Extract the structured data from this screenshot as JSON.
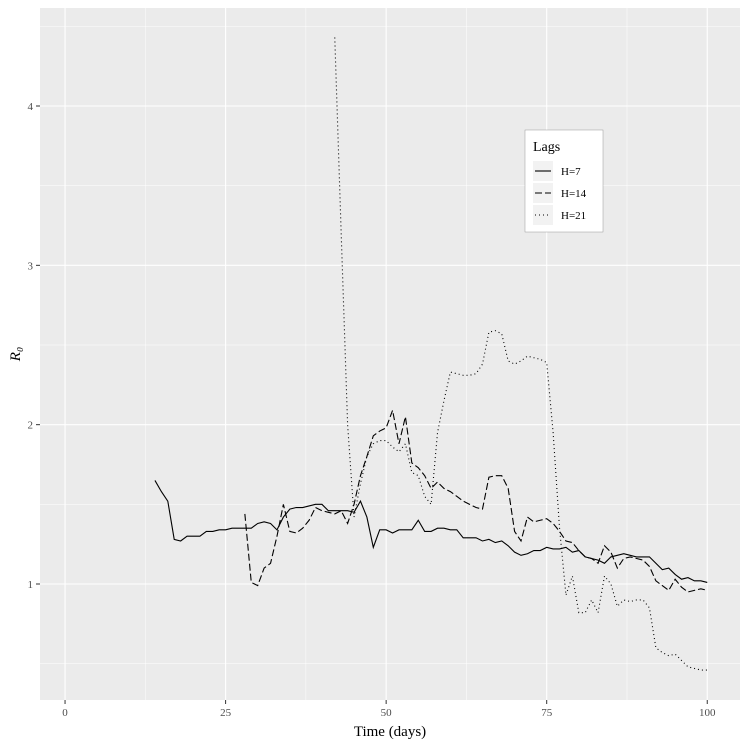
{
  "chart_data": {
    "type": "line",
    "x_label": "Time (days)",
    "y_label": "R₀",
    "x": [
      14,
      15,
      16,
      17,
      18,
      19,
      20,
      21,
      22,
      23,
      24,
      25,
      26,
      27,
      28,
      29,
      30,
      31,
      32,
      33,
      34,
      35,
      36,
      37,
      38,
      39,
      40,
      41,
      42,
      43,
      44,
      45,
      46,
      47,
      48,
      49,
      50,
      51,
      52,
      53,
      54,
      55,
      56,
      57,
      58,
      59,
      60,
      61,
      62,
      63,
      64,
      65,
      66,
      67,
      68,
      69,
      70,
      71,
      72,
      73,
      74,
      75,
      76,
      77,
      78,
      79,
      80,
      81,
      82,
      83,
      84,
      85,
      86,
      87,
      88,
      89,
      90,
      91,
      92,
      93,
      94,
      95,
      96,
      97,
      98,
      99,
      100
    ],
    "series": [
      {
        "name": "H=7",
        "color": "#000000",
        "dash": "solid",
        "values": [
          1.65,
          1.58,
          1.52,
          1.28,
          1.27,
          1.3,
          1.3,
          1.3,
          1.33,
          1.33,
          1.34,
          1.34,
          1.35,
          1.35,
          1.35,
          1.35,
          1.38,
          1.39,
          1.38,
          1.34,
          1.42,
          1.47,
          1.48,
          1.48,
          1.49,
          1.5,
          1.5,
          1.46,
          1.46,
          1.46,
          1.46,
          1.45,
          1.52,
          1.42,
          1.23,
          1.34,
          1.34,
          1.32,
          1.34,
          1.34,
          1.34,
          1.4,
          1.33,
          1.33,
          1.35,
          1.35,
          1.34,
          1.34,
          1.29,
          1.29,
          1.29,
          1.27,
          1.28,
          1.26,
          1.27,
          1.24,
          1.2,
          1.18,
          1.19,
          1.21,
          1.21,
          1.23,
          1.22,
          1.22,
          1.23,
          1.2,
          1.21,
          1.17,
          1.16,
          1.15,
          1.13,
          1.17,
          1.18,
          1.19,
          1.18,
          1.17,
          1.17,
          1.17,
          1.13,
          1.09,
          1.1,
          1.06,
          1.03,
          1.04,
          1.02,
          1.02,
          1.01
        ]
      },
      {
        "name": "H=14",
        "color": "#000000",
        "dash": "longdash",
        "values": [
          null,
          null,
          null,
          null,
          null,
          null,
          null,
          null,
          null,
          null,
          null,
          null,
          null,
          null,
          1.44,
          1.01,
          0.99,
          1.1,
          1.13,
          1.3,
          1.5,
          1.33,
          1.32,
          1.35,
          1.4,
          1.48,
          1.46,
          1.45,
          1.44,
          1.46,
          1.38,
          1.5,
          1.68,
          1.8,
          1.93,
          1.96,
          1.98,
          2.09,
          1.88,
          2.05,
          1.76,
          1.73,
          1.68,
          1.6,
          1.64,
          1.6,
          1.58,
          1.55,
          1.52,
          1.5,
          1.48,
          1.47,
          1.67,
          1.68,
          1.68,
          1.6,
          1.33,
          1.27,
          1.42,
          1.39,
          1.4,
          1.41,
          1.38,
          1.33,
          1.27,
          1.26,
          1.21,
          1.17,
          1.16,
          1.13,
          1.24,
          1.2,
          1.1,
          1.16,
          1.17,
          1.16,
          1.15,
          1.11,
          1.02,
          0.99,
          0.96,
          1.03,
          0.98,
          0.95,
          0.96,
          0.97,
          0.96
        ]
      },
      {
        "name": "H=21",
        "color": "#000000",
        "dash": "dotted",
        "values": [
          null,
          null,
          null,
          null,
          null,
          null,
          null,
          null,
          null,
          null,
          null,
          null,
          null,
          null,
          null,
          null,
          null,
          null,
          null,
          null,
          null,
          null,
          null,
          null,
          null,
          null,
          null,
          null,
          4.43,
          3.2,
          2.0,
          1.42,
          1.63,
          1.8,
          1.88,
          1.9,
          1.9,
          1.86,
          1.83,
          1.88,
          1.7,
          1.68,
          1.55,
          1.5,
          1.95,
          2.15,
          2.33,
          2.32,
          2.31,
          2.31,
          2.32,
          2.38,
          2.58,
          2.59,
          2.57,
          2.4,
          2.38,
          2.4,
          2.43,
          2.42,
          2.41,
          2.39,
          1.95,
          1.35,
          0.93,
          1.05,
          0.82,
          0.82,
          0.9,
          0.82,
          1.05,
          1.0,
          0.86,
          0.9,
          0.89,
          0.9,
          0.9,
          0.85,
          0.6,
          0.57,
          0.55,
          0.56,
          0.52,
          0.48,
          0.47,
          0.46,
          0.46
        ]
      }
    ],
    "xlim": [
      -3.9,
      105.1
    ],
    "xticks": [
      0,
      25,
      50,
      75,
      100
    ],
    "ylim": [
      0.272,
      4.615
    ],
    "yticks": [
      1,
      2,
      3,
      4
    ],
    "legend_title": "Lags",
    "grid": true
  }
}
